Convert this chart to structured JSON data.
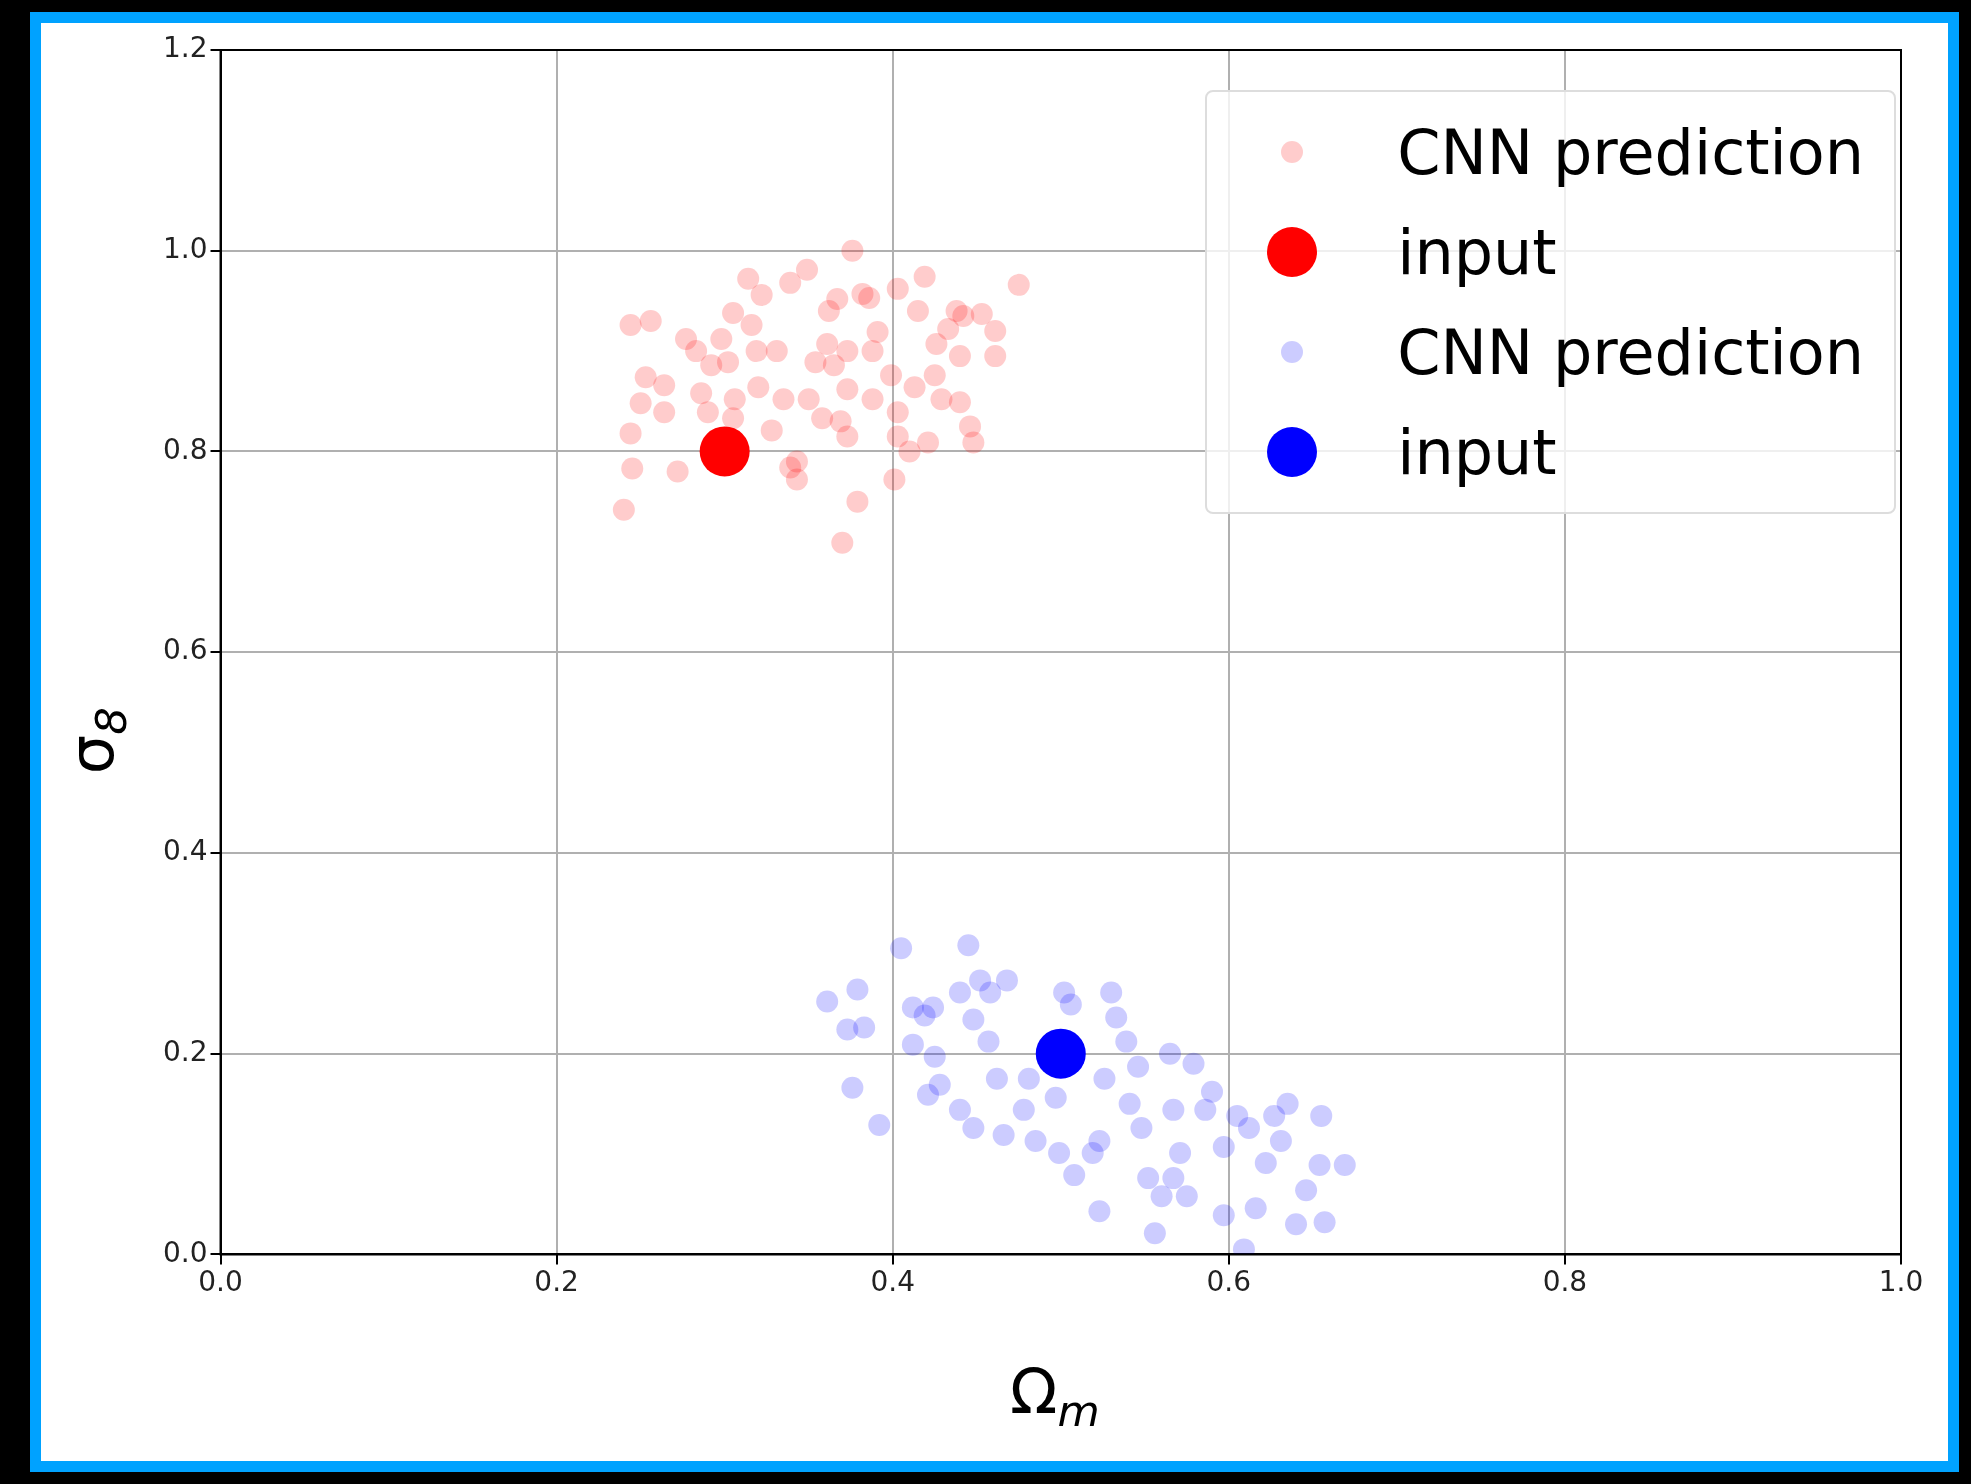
{
  "chart_data": {
    "type": "scatter",
    "xlabel": "Ω$_{m}$",
    "ylabel": "σ$_{8}$",
    "xlim": [
      0,
      1
    ],
    "ylim": [
      0,
      1.2
    ],
    "xticks": [
      {
        "value": 0,
        "label": "0.0"
      },
      0.2,
      0.4,
      0.6,
      0.8,
      {
        "value": 1,
        "label": "1.0"
      }
    ],
    "yticks": [
      {
        "value": 0,
        "label": "0.0"
      },
      0.2,
      0.4,
      0.6,
      0.8,
      {
        "value": 1,
        "label": "1.0"
      },
      1.2
    ],
    "grid": true,
    "legend": "top right",
    "marker": "circle",
    "series": [
      {
        "name": "CNN prediction",
        "color": "#ff0000",
        "x": [
          0.24,
          0.244,
          0.256,
          0.244,
          0.245,
          0.253,
          0.25,
          0.264,
          0.264,
          0.272,
          0.277,
          0.283,
          0.286,
          0.292,
          0.298,
          0.302,
          0.305,
          0.314,
          0.316,
          0.32,
          0.328,
          0.322,
          0.331,
          0.335,
          0.339,
          0.349,
          0.343,
          0.339,
          0.343,
          0.354,
          0.361,
          0.362,
          0.365,
          0.367,
          0.373,
          0.376,
          0.373,
          0.37,
          0.379,
          0.382,
          0.386,
          0.391,
          0.399,
          0.403,
          0.401,
          0.403,
          0.41,
          0.415,
          0.419,
          0.421,
          0.425,
          0.426,
          0.429,
          0.433,
          0.438,
          0.44,
          0.44,
          0.442,
          0.446,
          0.448,
          0.453,
          0.461,
          0.461,
          0.475,
          0.413,
          0.388,
          0.358,
          0.305,
          0.29,
          0.373,
          0.319,
          0.306,
          0.35,
          0.388,
          0.403,
          0.369
        ],
        "values": [
          0.742,
          0.926,
          0.93,
          0.818,
          0.783,
          0.874,
          0.848,
          0.866,
          0.839,
          0.78,
          0.912,
          0.9,
          0.858,
          0.886,
          0.912,
          0.889,
          0.938,
          0.972,
          0.926,
          0.864,
          0.821,
          0.956,
          0.9,
          0.852,
          0.968,
          0.981,
          0.79,
          0.784,
          0.772,
          0.889,
          0.907,
          0.94,
          0.886,
          0.952,
          0.862,
          1.0,
          0.815,
          0.709,
          0.75,
          0.957,
          0.953,
          0.919,
          0.876,
          0.962,
          0.772,
          0.815,
          0.8,
          0.94,
          0.974,
          0.809,
          0.876,
          0.907,
          0.852,
          0.922,
          0.94,
          0.895,
          0.849,
          0.935,
          0.825,
          0.809,
          0.937,
          0.92,
          0.895,
          0.966,
          0.864,
          0.852,
          0.833,
          0.833,
          0.839,
          0.9,
          0.9,
          0.852,
          0.852,
          0.9,
          0.839,
          0.83
        ]
      },
      {
        "name": "input",
        "color": "#ff0000",
        "x": [
          0.3
        ],
        "values": [
          0.8
        ]
      },
      {
        "name": "CNN prediction",
        "color": "#0000ff",
        "x": [
          0.361,
          0.373,
          0.379,
          0.383,
          0.376,
          0.392,
          0.405,
          0.445,
          0.412,
          0.419,
          0.424,
          0.412,
          0.425,
          0.421,
          0.428,
          0.44,
          0.448,
          0.452,
          0.458,
          0.468,
          0.44,
          0.448,
          0.457,
          0.462,
          0.466,
          0.478,
          0.485,
          0.481,
          0.497,
          0.499,
          0.502,
          0.506,
          0.508,
          0.519,
          0.523,
          0.523,
          0.53,
          0.533,
          0.539,
          0.546,
          0.526,
          0.541,
          0.548,
          0.556,
          0.56,
          0.565,
          0.567,
          0.571,
          0.579,
          0.586,
          0.59,
          0.597,
          0.597,
          0.609,
          0.605,
          0.612,
          0.616,
          0.622,
          0.627,
          0.631,
          0.635,
          0.64,
          0.646,
          0.655,
          0.654,
          0.657,
          0.669,
          0.567,
          0.552,
          0.575
        ],
        "values": [
          0.252,
          0.224,
          0.264,
          0.226,
          0.166,
          0.129,
          0.305,
          0.308,
          0.246,
          0.238,
          0.246,
          0.209,
          0.197,
          0.159,
          0.169,
          0.261,
          0.234,
          0.273,
          0.261,
          0.273,
          0.144,
          0.126,
          0.212,
          0.175,
          0.119,
          0.144,
          0.113,
          0.175,
          0.156,
          0.101,
          0.261,
          0.249,
          0.079,
          0.101,
          0.043,
          0.113,
          0.261,
          0.236,
          0.212,
          0.187,
          0.175,
          0.15,
          0.126,
          0.021,
          0.058,
          0.2,
          0.144,
          0.101,
          0.19,
          0.144,
          0.162,
          0.107,
          0.039,
          0.005,
          0.138,
          0.126,
          0.046,
          0.091,
          0.138,
          0.113,
          0.15,
          0.03,
          0.064,
          0.138,
          0.089,
          0.032,
          0.089,
          0.076,
          0.076,
          0.058
        ]
      },
      {
        "name": "input",
        "color": "#0000ff",
        "x": [
          0.5
        ],
        "values": [
          0.2
        ]
      }
    ]
  }
}
